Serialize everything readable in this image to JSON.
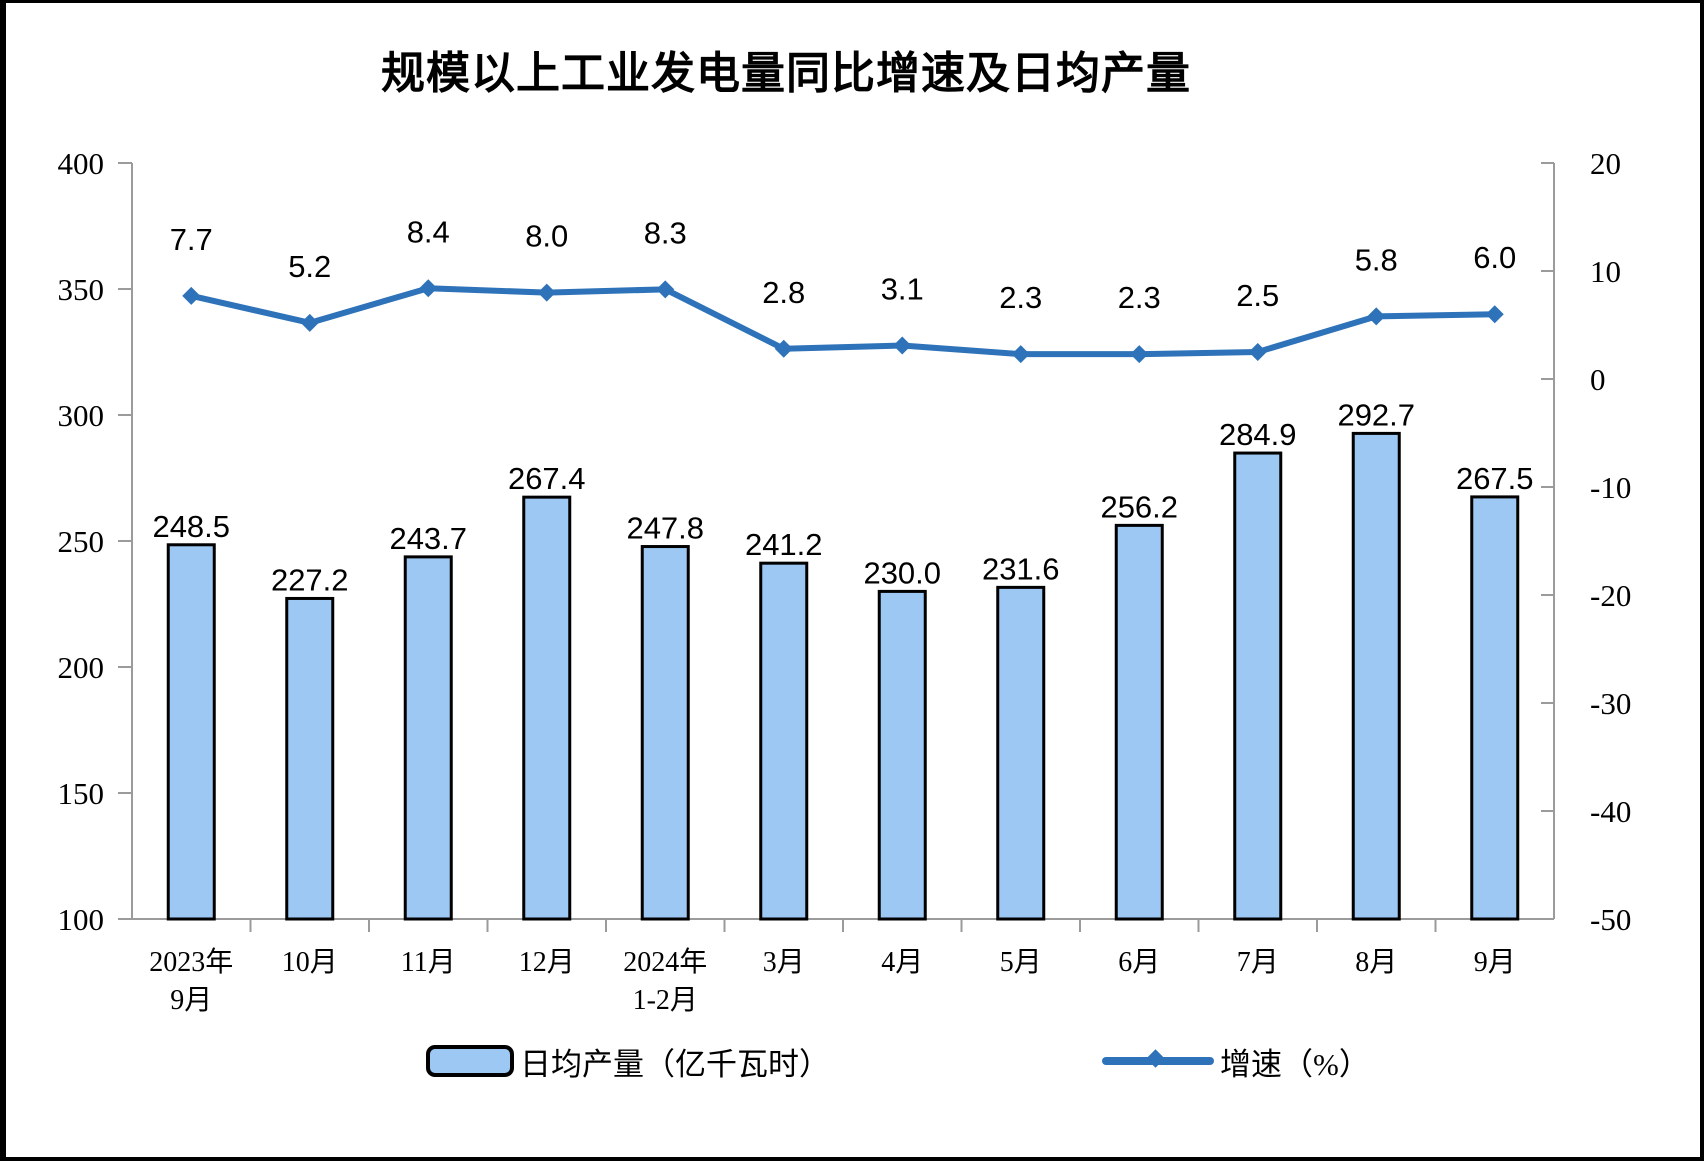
{
  "title": "规模以上工业发电量同比增速及日均产量",
  "chart_data": {
    "type": "combo-bar-line",
    "categories": [
      [
        "2023年",
        "9月"
      ],
      [
        "10月"
      ],
      [
        "11月"
      ],
      [
        "12月"
      ],
      [
        "2024年",
        "1-2月"
      ],
      [
        "3月"
      ],
      [
        "4月"
      ],
      [
        "5月"
      ],
      [
        "6月"
      ],
      [
        "7月"
      ],
      [
        "8月"
      ],
      [
        "9月"
      ]
    ],
    "series": [
      {
        "name": "日均产量（亿千瓦时）",
        "type": "bar",
        "axis": "left",
        "values": [
          248.5,
          227.2,
          243.7,
          267.4,
          247.8,
          241.2,
          230.0,
          231.6,
          256.2,
          284.9,
          292.7,
          267.5
        ],
        "labels": [
          "248.5",
          "227.2",
          "243.7",
          "267.4",
          "247.8",
          "241.2",
          "230.0",
          "231.6",
          "256.2",
          "284.9",
          "292.7",
          "267.5"
        ],
        "fill_color": "#9DC8F3",
        "border_color": "#000000"
      },
      {
        "name": "增速（%）",
        "type": "line",
        "axis": "right",
        "values": [
          7.7,
          5.2,
          8.4,
          8.0,
          8.3,
          2.8,
          3.1,
          2.3,
          2.3,
          2.5,
          5.8,
          6.0
        ],
        "labels": [
          "7.7",
          "5.2",
          "8.4",
          "8.0",
          "8.3",
          "2.8",
          "3.1",
          "2.3",
          "2.3",
          "2.5",
          "5.8",
          "6.0"
        ],
        "color": "#2E72B9",
        "marker": "diamond"
      }
    ],
    "left_axis": {
      "min": 100,
      "max": 400,
      "step": 50,
      "tick_labels": [
        "400",
        "350",
        "300",
        "250",
        "200",
        "150",
        "100"
      ]
    },
    "right_axis": {
      "min": -50,
      "max": 20,
      "step": 10,
      "tick_labels": [
        "20",
        "10",
        "0",
        "-10",
        "-20",
        "-30",
        "-40",
        "-50"
      ]
    },
    "grid": false,
    "legend_position": "bottom",
    "axis_line_color": "#9B9B9B",
    "text_color": "#000000"
  }
}
